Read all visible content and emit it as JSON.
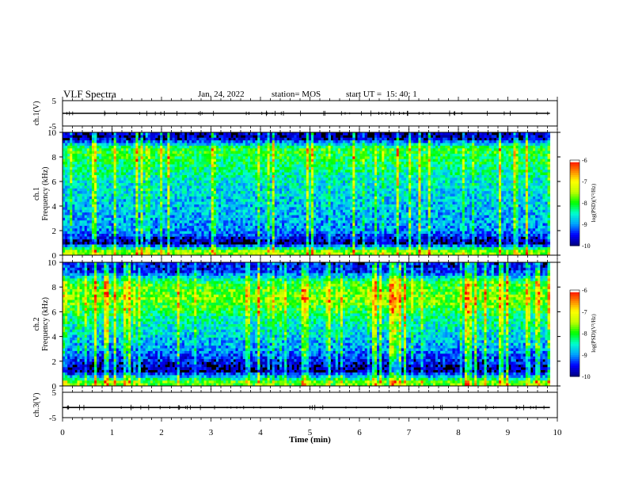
{
  "header": {
    "title": "VLF Spectra",
    "date": "Jan. 24, 2022",
    "station": "station= MOS",
    "start_ut": "start UT =  15: 40: 1"
  },
  "colors": {
    "colormap": [
      "#000080",
      "#0000ff",
      "#00a0ff",
      "#00ffd0",
      "#00ff00",
      "#c0ff00",
      "#ffff00",
      "#ff8000",
      "#ff0000",
      "#ffffff"
    ],
    "background": "#ffffff",
    "trace": "#000000"
  },
  "chart_data": [
    {
      "type": "line",
      "panel": "ch1-waveform",
      "ylabel": "ch.1(V)",
      "ylim": [
        -5,
        5
      ],
      "yticks": [
        "5",
        "-5"
      ],
      "xlim": [
        0,
        10
      ],
      "baseline": 0,
      "series": [
        {
          "values": "flat trace near 0 V with sparse small spikes"
        }
      ]
    },
    {
      "type": "heatmap",
      "panel": "ch1-spectrogram",
      "ylabel": "ch.1\nFrequency (kHz)",
      "ylim": [
        0,
        10
      ],
      "yticks": [
        "0",
        "2",
        "4",
        "6",
        "8",
        "10"
      ],
      "xlim": [
        0,
        10
      ],
      "data_end_min": 9.85,
      "colorbar": {
        "label": "log(PSD)(V²/Hz)",
        "range": [
          -10,
          -6
        ],
        "ticks": [
          "-6",
          "-7",
          "-8",
          "-9",
          "-10"
        ]
      },
      "band_profile": [
        {
          "freq_khz": 0.3,
          "level": -7.6
        },
        {
          "freq_khz": 1.0,
          "level": -9.9
        },
        {
          "freq_khz": 2.0,
          "level": -9.0
        },
        {
          "freq_khz": 4.0,
          "level": -8.8
        },
        {
          "freq_khz": 6.0,
          "level": -8.6
        },
        {
          "freq_khz": 7.5,
          "level": -8.2
        },
        {
          "freq_khz": 8.7,
          "level": -8.0
        },
        {
          "freq_khz": 9.5,
          "level": -9.8
        }
      ]
    },
    {
      "type": "heatmap",
      "panel": "ch2-spectrogram",
      "ylabel": "ch.2\nFrequency (kHz)",
      "ylim": [
        0,
        10
      ],
      "yticks": [
        "0",
        "2",
        "4",
        "6",
        "8",
        "10"
      ],
      "xlim": [
        0,
        10
      ],
      "data_end_min": 9.85,
      "colorbar": {
        "label": "log(PSD)(V²/Hz)",
        "range": [
          -10,
          -6
        ],
        "ticks": [
          "-6",
          "-7",
          "-8",
          "-9",
          "-10"
        ]
      },
      "band_profile": [
        {
          "freq_khz": 0.3,
          "level": -7.8
        },
        {
          "freq_khz": 1.2,
          "level": -9.9
        },
        {
          "freq_khz": 3.0,
          "level": -9.0
        },
        {
          "freq_khz": 5.5,
          "level": -8.4
        },
        {
          "freq_khz": 7.0,
          "level": -7.7
        },
        {
          "freq_khz": 8.3,
          "level": -8.0
        },
        {
          "freq_khz": 9.3,
          "level": -9.5
        }
      ]
    },
    {
      "type": "line",
      "panel": "ch3-waveform",
      "ylabel": "ch.3(V)",
      "ylim": [
        -5,
        5
      ],
      "yticks": [
        "5",
        "-5"
      ],
      "xlim": [
        0,
        10
      ],
      "baseline": -1,
      "series": [
        {
          "values": "flat trace near -1 V with sparse small spikes"
        }
      ]
    }
  ],
  "xaxis": {
    "label": "Time (min)",
    "ticks": [
      "0",
      "1",
      "2",
      "3",
      "4",
      "5",
      "6",
      "7",
      "8",
      "9",
      "10"
    ]
  }
}
